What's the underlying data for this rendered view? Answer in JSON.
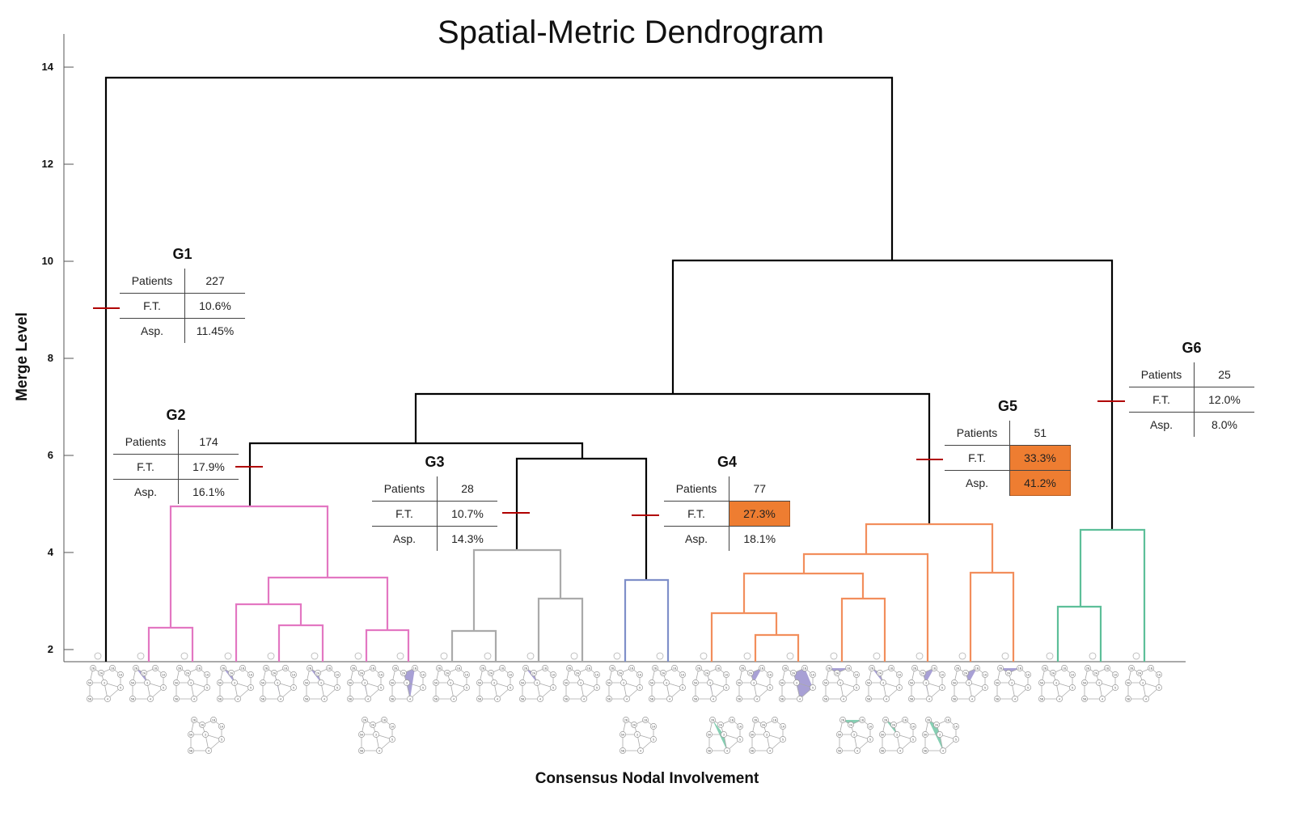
{
  "title": "Spatial-Metric Dendrogram",
  "xlabel": "Consensus Nodal Involvement",
  "ylabel": "Merge Level",
  "yticks": [
    "2",
    "4",
    "6",
    "8",
    "10",
    "12",
    "14"
  ],
  "colors": {
    "black": "#000000",
    "pink": "#e377c2",
    "gray": "#aaaaaa",
    "blue": "#7f8fc9",
    "orange": "#f28e5c",
    "green": "#5dbf99",
    "cut": "#b00000",
    "highlight": "#ee7d31"
  },
  "groups": [
    {
      "name": "G1",
      "patients": "227",
      "ft": "10.6%",
      "asp": "11.45%",
      "ft_highlight": false,
      "asp_highlight": false
    },
    {
      "name": "G2",
      "patients": "174",
      "ft": "17.9%",
      "asp": "16.1%",
      "ft_highlight": false,
      "asp_highlight": false
    },
    {
      "name": "G3",
      "patients": "28",
      "ft": "10.7%",
      "asp": "14.3%",
      "ft_highlight": false,
      "asp_highlight": false
    },
    {
      "name": "G4",
      "patients": "77",
      "ft": "27.3%",
      "asp": "18.1%",
      "ft_highlight": true,
      "asp_highlight": false
    },
    {
      "name": "G5",
      "patients": "51",
      "ft": "33.3%",
      "asp": "41.2%",
      "ft_highlight": true,
      "asp_highlight": true
    },
    {
      "name": "G6",
      "patients": "25",
      "ft": "12.0%",
      "asp": "8.0%",
      "ft_highlight": false,
      "asp_highlight": false
    }
  ],
  "row_labels": {
    "patients": "Patients",
    "ft": "F.T.",
    "asp": "Asp."
  },
  "node_labels": [
    "2B",
    "2A",
    "1B",
    "1A",
    "5A",
    "3",
    "5",
    "5B",
    "4",
    "RP"
  ]
}
